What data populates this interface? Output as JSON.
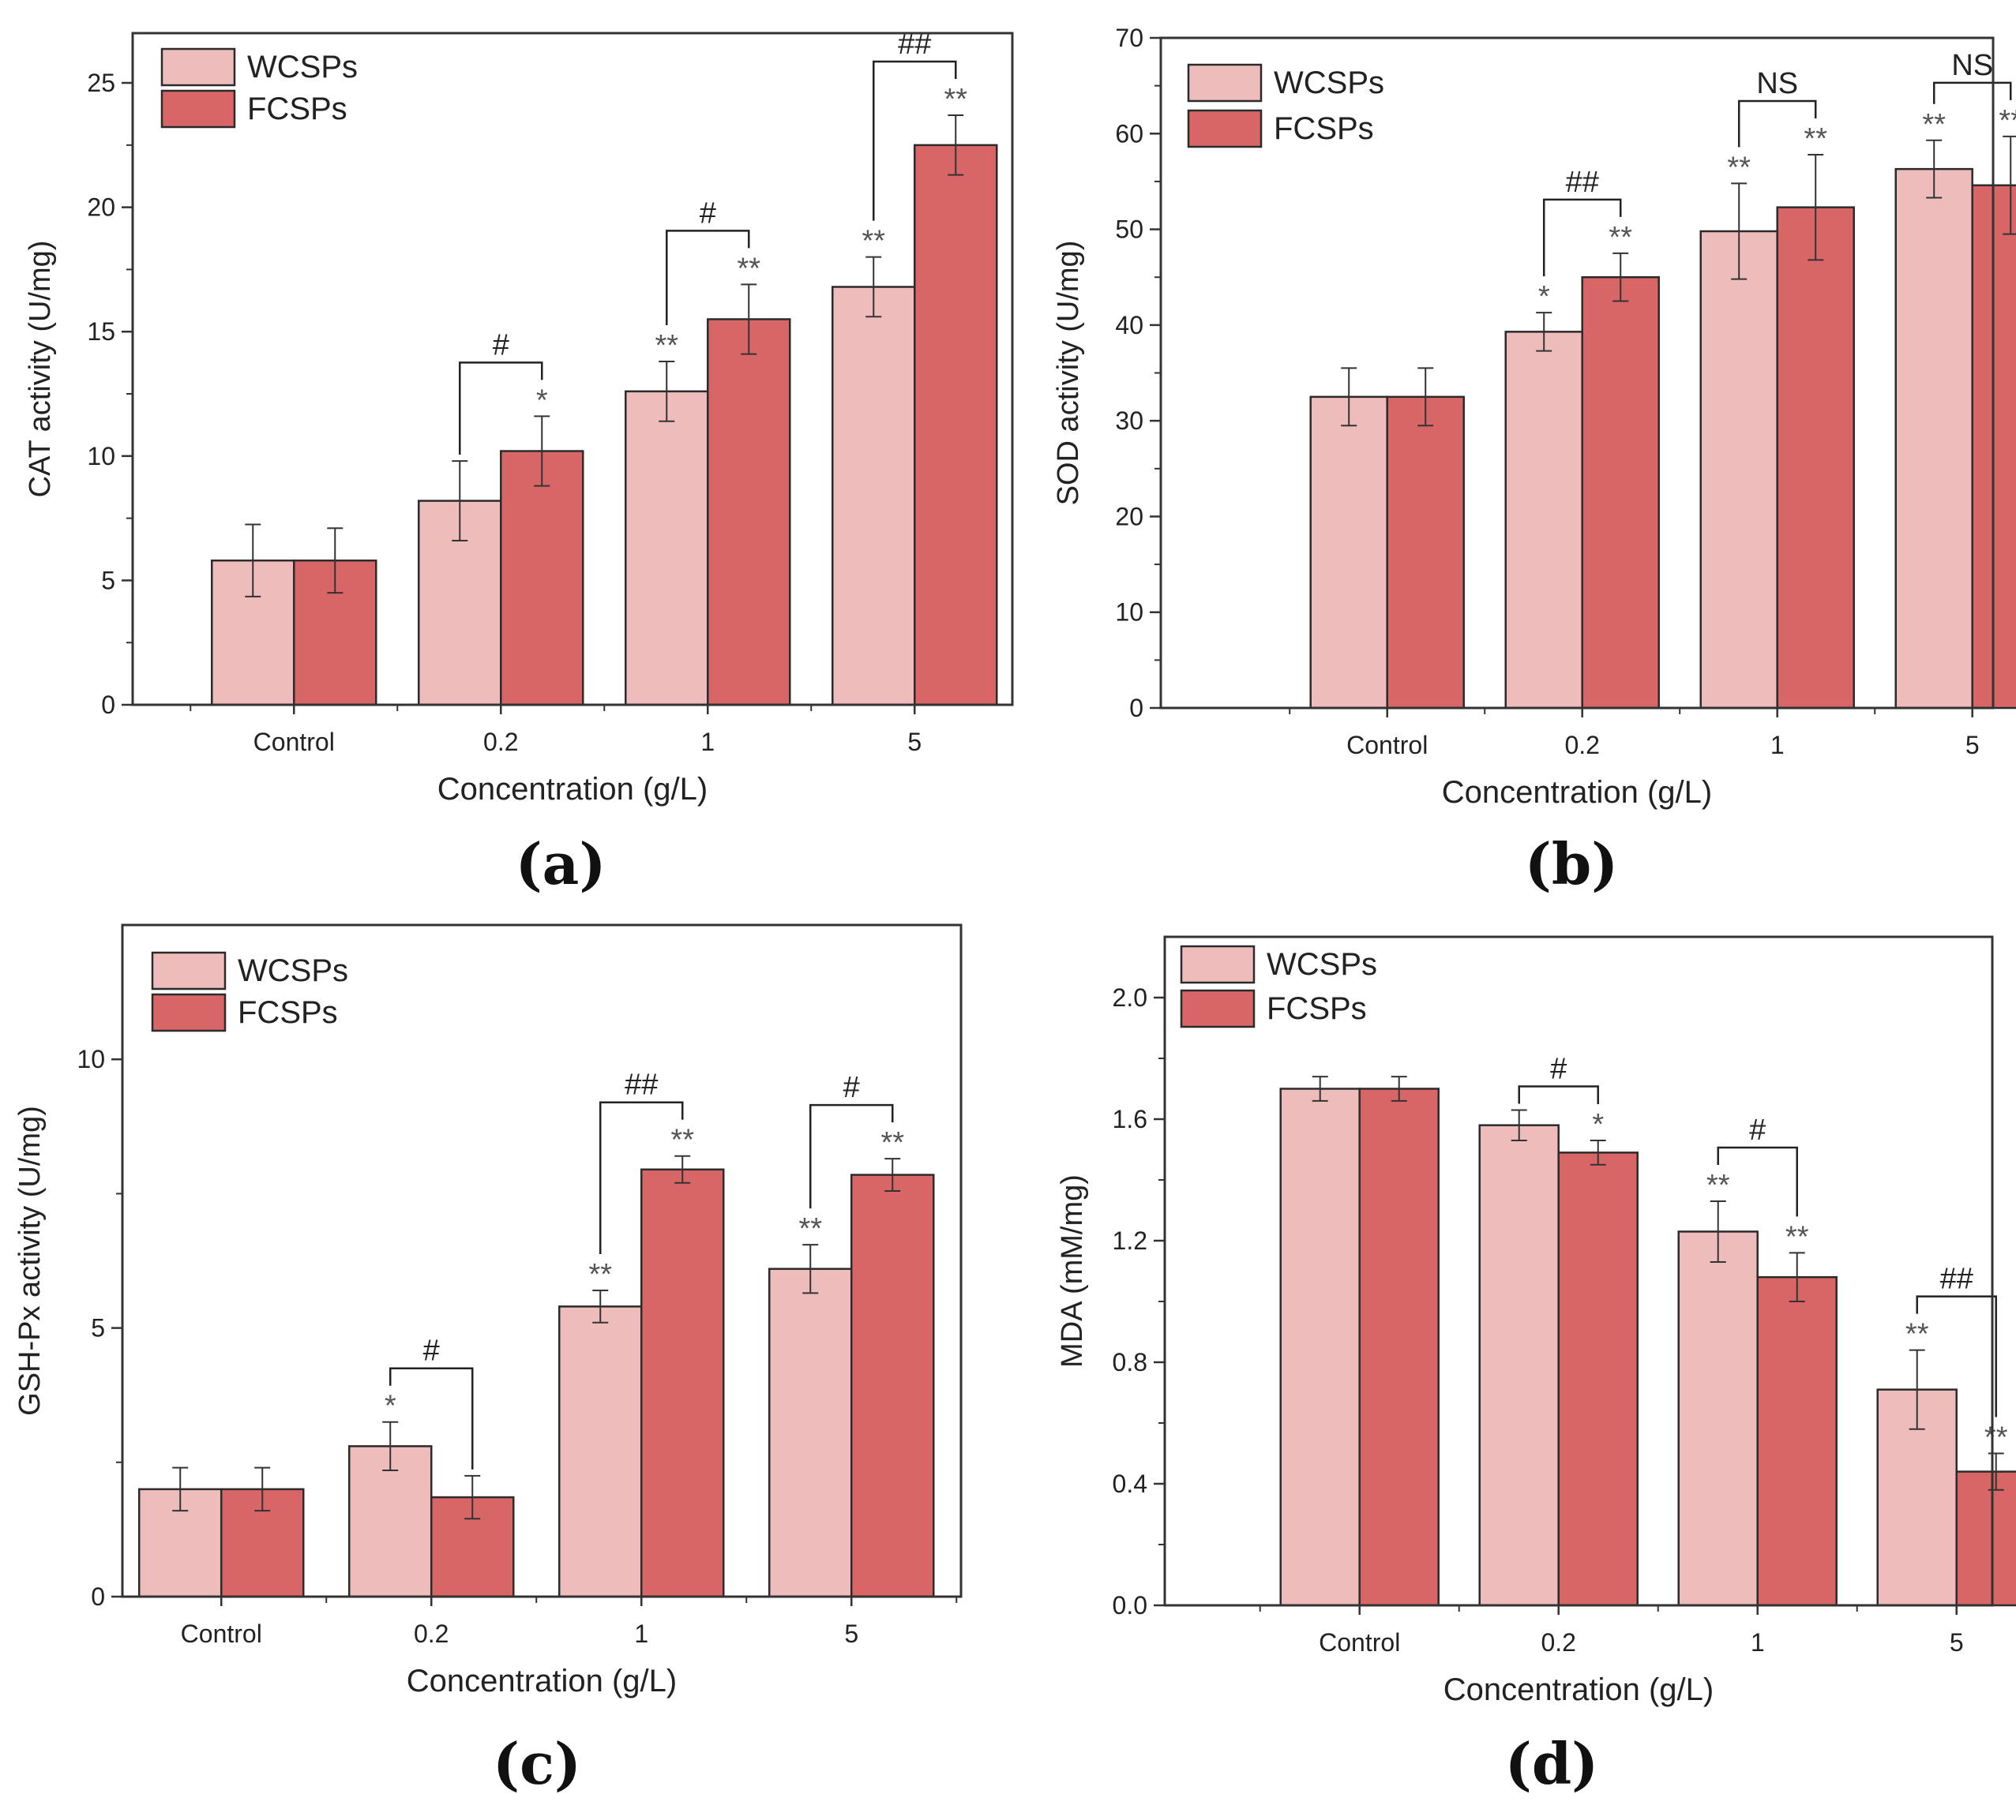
{
  "legend": {
    "series": [
      "WCSPs",
      "FCSPs"
    ]
  },
  "colors": {
    "wcsps": "#efbcbc",
    "fcsps": "#d96666",
    "axis": "#333333",
    "text": "#222222",
    "star": "#555555"
  },
  "chart_data": [
    {
      "type": "bar",
      "panel": "(a)",
      "xlabel": "Concentration (g/L)",
      "ylabel": "CAT activity (U/mg)",
      "ylim": [
        0,
        27
      ],
      "yticks": [
        0,
        5,
        10,
        15,
        20,
        25
      ],
      "legend_position": "top-left",
      "categories": [
        "Control",
        "0.2",
        "1",
        "5"
      ],
      "series": [
        {
          "name": "WCSPs",
          "values": [
            5.8,
            8.2,
            12.6,
            16.8
          ],
          "errors": [
            1.45,
            1.6,
            1.2,
            1.2
          ],
          "stars": [
            "",
            "",
            "**",
            "**"
          ]
        },
        {
          "name": "FCSPs",
          "values": [
            5.8,
            10.2,
            15.5,
            22.5
          ],
          "errors": [
            1.3,
            1.4,
            1.4,
            1.2
          ],
          "stars": [
            "",
            "*",
            "**",
            "**"
          ]
        }
      ],
      "brackets": [
        "",
        "#",
        "#",
        "##"
      ]
    },
    {
      "type": "bar",
      "panel": "(b)",
      "xlabel": "Concentration (g/L)",
      "ylabel": "SOD activity (U/mg)",
      "ylim": [
        0,
        70
      ],
      "yticks": [
        0,
        10,
        20,
        30,
        40,
        50,
        60,
        70
      ],
      "legend_position": "top-left",
      "categories": [
        "Control",
        "0.2",
        "1",
        "5"
      ],
      "series": [
        {
          "name": "WCSPs",
          "values": [
            32.5,
            39.3,
            49.8,
            56.3
          ],
          "errors": [
            3.0,
            2.0,
            5.0,
            3.0
          ],
          "stars": [
            "",
            "*",
            "**",
            "**"
          ]
        },
        {
          "name": "FCSPs",
          "values": [
            32.5,
            45.0,
            52.3,
            54.6
          ],
          "errors": [
            3.0,
            2.5,
            5.5,
            5.1
          ],
          "stars": [
            "",
            "**",
            "**",
            "**"
          ]
        }
      ],
      "brackets": [
        "",
        "##",
        "NS",
        "NS"
      ]
    },
    {
      "type": "bar",
      "panel": "(c)",
      "xlabel": "Concentration (g/L)",
      "ylabel": "GSH-Px activity (U/mg)",
      "ylim": [
        0,
        12.5
      ],
      "yticks": [
        0,
        5,
        10
      ],
      "legend_position": "top-left",
      "categories": [
        "Control",
        "0.2",
        "1",
        "5"
      ],
      "series": [
        {
          "name": "WCSPs",
          "values": [
            2.0,
            2.8,
            5.4,
            6.1
          ],
          "errors": [
            0.4,
            0.45,
            0.3,
            0.45
          ],
          "stars": [
            "",
            "*",
            "**",
            "**"
          ]
        },
        {
          "name": "FCSPs",
          "values": [
            2.0,
            1.85,
            7.95,
            7.85
          ],
          "errors": [
            0.4,
            0.4,
            0.25,
            0.3
          ],
          "stars": [
            "",
            "",
            "**",
            "**"
          ]
        }
      ],
      "brackets": [
        "",
        "#",
        "##",
        "#"
      ]
    },
    {
      "type": "bar",
      "panel": "(d)",
      "xlabel": "Concentration (g/L)",
      "ylabel": "MDA (mM/mg)",
      "ylim": [
        0,
        2.2
      ],
      "yticks": [
        0.0,
        0.4,
        0.8,
        1.2,
        1.6,
        2.0
      ],
      "ytick_labels": [
        "0.0",
        "0.4",
        "0.8",
        "1.2",
        "1.6",
        "2.0"
      ],
      "legend_position": "top-left",
      "categories": [
        "Control",
        "0.2",
        "1",
        "5"
      ],
      "series": [
        {
          "name": "WCSPs",
          "values": [
            1.7,
            1.58,
            1.23,
            0.71
          ],
          "errors": [
            0.04,
            0.05,
            0.1,
            0.13
          ],
          "stars": [
            "",
            "",
            "**",
            "**"
          ]
        },
        {
          "name": "FCSPs",
          "values": [
            1.7,
            1.49,
            1.08,
            0.44
          ],
          "errors": [
            0.04,
            0.04,
            0.08,
            0.06
          ],
          "stars": [
            "",
            "*",
            "**",
            "**"
          ]
        }
      ],
      "brackets": [
        "",
        "#",
        "#",
        "##"
      ]
    }
  ]
}
